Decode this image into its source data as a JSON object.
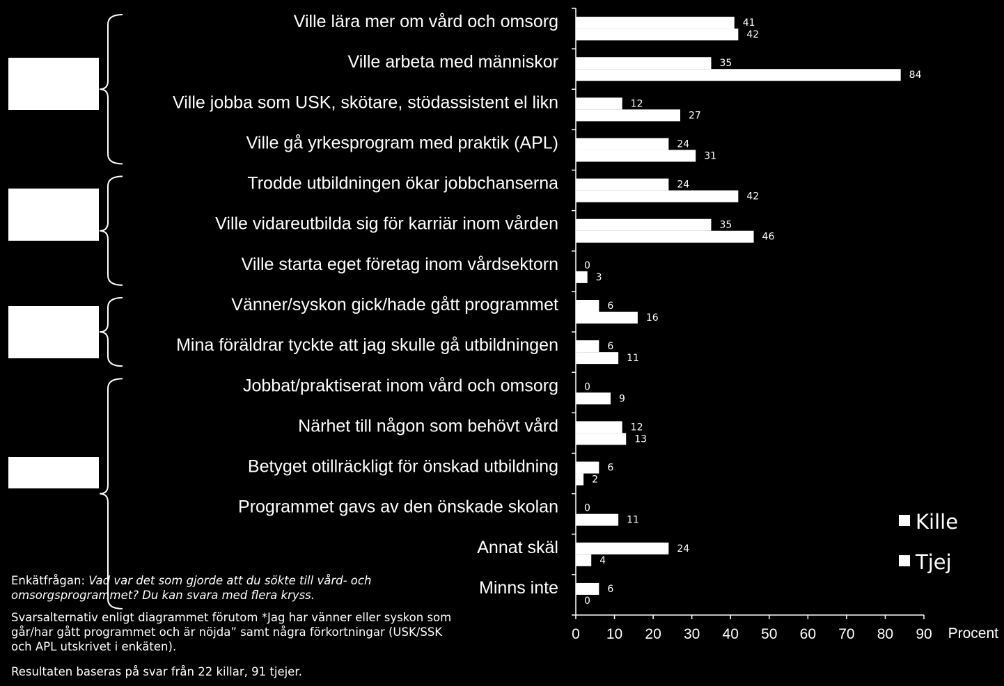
{
  "chart_data": {
    "type": "bar",
    "orientation": "horizontal",
    "categories": [
      "Ville lära mer om vård och omsorg",
      "Ville arbeta med människor",
      "Ville jobba som USK, skötare, stödassistent el likn",
      "Ville gå yrkesprogram med praktik (APL)",
      "Trodde utbildningen ökar jobbchanserna",
      "Ville vidareutbilda sig för karriär inom vården",
      "Ville starta eget företag inom vårdsektorn",
      "Vänner/syskon gick/hade gått programmet",
      "Mina föräldrar tyckte att jag skulle gå utbildningen",
      "Jobbat/praktiserat inom vård och omsorg",
      "Närhet till någon som behövt vård",
      "Betyget otillräckligt för önskad utbildning",
      "Programmet gavs av den önskade skolan",
      "Annat skäl",
      "Minns inte"
    ],
    "series": [
      {
        "name": "Kille",
        "color": "#ffffff",
        "values": [
          41,
          35,
          12,
          24,
          24,
          35,
          0,
          6,
          6,
          0,
          12,
          6,
          0,
          24,
          6
        ]
      },
      {
        "name": "Tjej",
        "color": "#ffffff",
        "values": [
          42,
          84,
          27,
          31,
          42,
          46,
          3,
          16,
          11,
          9,
          13,
          2,
          11,
          4,
          0
        ]
      }
    ],
    "xlabel": "Procent",
    "xlim": [
      0,
      90
    ],
    "xticks": [
      "0",
      "10",
      "20",
      "30",
      "40",
      "50",
      "60",
      "70",
      "80",
      "90"
    ],
    "grid": false,
    "legend_position": "bottom-right"
  },
  "colors": {
    "background": "#000000",
    "foreground": "#ffffff"
  },
  "footnotes": {
    "question_prefix": "Enkätfrågan: ",
    "question_text": "Vad var det som gjorde att du sökte till vård- och omsorgsprogrammet? Du kan svara med flera kryss.",
    "alternatives": "Svarsalternativ enligt diagrammet förutom  *Jag har vänner eller syskon som går/har gått programmet och är nöjda” samt några förkortningar (USK/SSK  och APL utskrivet i enkäten).",
    "basis": "Resultaten baseras på svar från 22 killar, 91 tjejer."
  }
}
